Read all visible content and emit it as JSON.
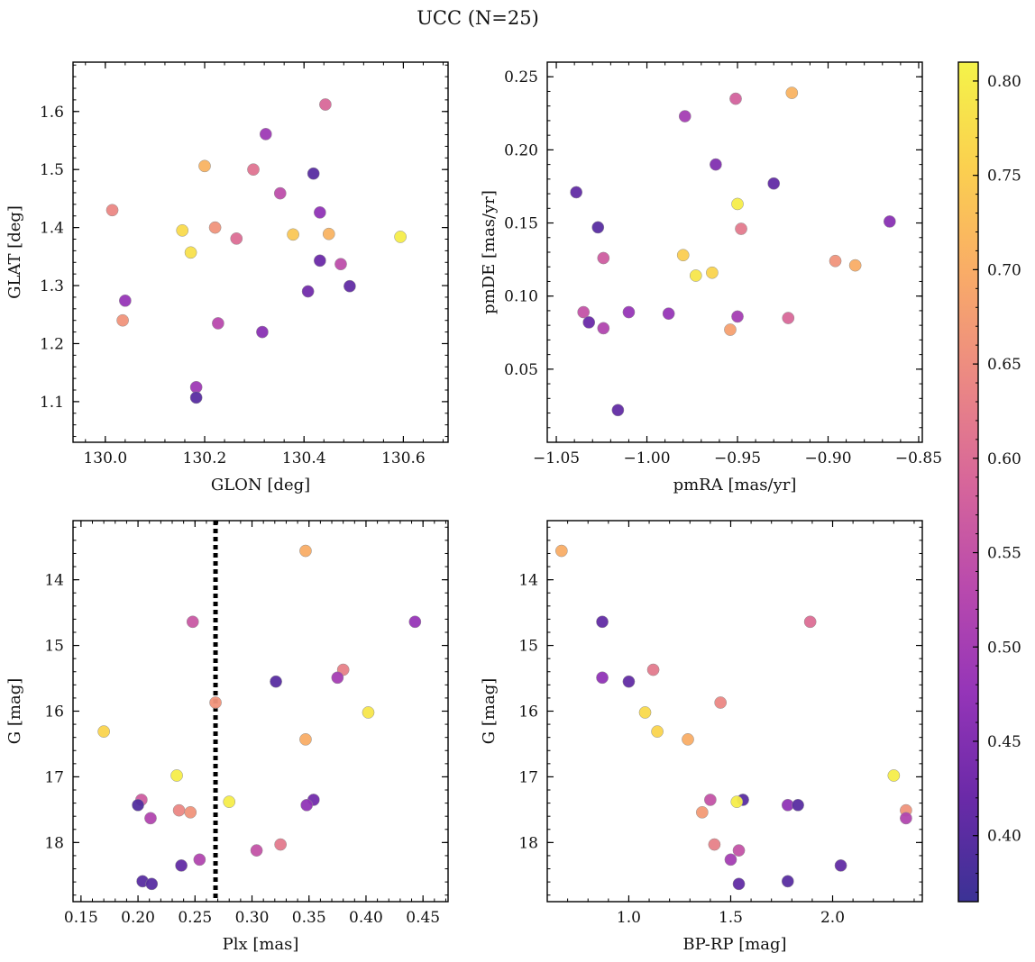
{
  "figure": {
    "title": "UCC (N=25)"
  },
  "chart_data": [
    {
      "type": "scatter",
      "xlabel": "GLON [deg]",
      "ylabel": "GLAT [deg]",
      "xlim": [
        129.935,
        130.69
      ],
      "ylim": [
        1.03,
        1.685
      ],
      "y_inverted": false,
      "xticks": [
        130.0,
        130.2,
        130.4,
        130.6
      ],
      "xtick_labels": [
        "130.0",
        "130.2",
        "130.4",
        "130.6"
      ],
      "yticks": [
        1.1,
        1.2,
        1.3,
        1.4,
        1.5,
        1.6
      ],
      "ytick_labels": [
        "1.1",
        "1.2",
        "1.3",
        "1.4",
        "1.5",
        "1.6"
      ],
      "x": [
        130.443,
        130.323,
        130.419,
        130.2,
        130.298,
        130.352,
        130.432,
        130.014,
        130.221,
        130.155,
        130.378,
        130.45,
        130.594,
        130.264,
        130.172,
        130.432,
        130.474,
        130.492,
        130.408,
        130.04,
        130.035,
        130.227,
        130.316,
        130.183,
        130.183
      ],
      "y": [
        1.612,
        1.561,
        1.493,
        1.506,
        1.5,
        1.459,
        1.426,
        1.43,
        1.4,
        1.395,
        1.388,
        1.389,
        1.384,
        1.381,
        1.357,
        1.343,
        1.337,
        1.299,
        1.29,
        1.274,
        1.24,
        1.235,
        1.22,
        1.125,
        1.107
      ],
      "c": [
        0.59,
        0.49,
        0.4,
        0.71,
        0.61,
        0.54,
        0.47,
        0.64,
        0.66,
        0.77,
        0.74,
        0.71,
        0.8,
        0.6,
        0.78,
        0.42,
        0.54,
        0.41,
        0.43,
        0.48,
        0.66,
        0.53,
        0.46,
        0.49,
        0.4
      ]
    },
    {
      "type": "scatter",
      "xlabel": "pmRA [mas/yr]",
      "ylabel": "pmDE [mas/yr]",
      "xlim": [
        -1.055,
        -0.848
      ],
      "ylim": [
        0.0,
        0.26
      ],
      "y_inverted": false,
      "xticks": [
        -1.05,
        -1.0,
        -0.95,
        -0.9,
        -0.85
      ],
      "xtick_labels": [
        "−1.05",
        "−1.00",
        "−0.95",
        "−0.90",
        "−0.85"
      ],
      "yticks": [
        0.05,
        0.1,
        0.15,
        0.2,
        0.25
      ],
      "ytick_labels": [
        "0.05",
        "0.10",
        "0.15",
        "0.20",
        "0.25"
      ],
      "x": [
        -0.92,
        -0.951,
        -0.979,
        -0.962,
        -0.93,
        -1.039,
        -0.866,
        -1.027,
        -0.95,
        -0.948,
        -0.98,
        -0.964,
        -0.973,
        -1.024,
        -0.896,
        -0.885,
        -1.035,
        -1.01,
        -0.988,
        -0.95,
        -1.032,
        -0.922,
        -1.024,
        -0.954,
        -1.016
      ],
      "y": [
        0.239,
        0.235,
        0.223,
        0.19,
        0.177,
        0.171,
        0.151,
        0.147,
        0.163,
        0.146,
        0.128,
        0.116,
        0.114,
        0.126,
        0.124,
        0.121,
        0.089,
        0.089,
        0.088,
        0.086,
        0.082,
        0.085,
        0.078,
        0.077,
        0.022
      ],
      "c": [
        0.71,
        0.58,
        0.5,
        0.45,
        0.41,
        0.41,
        0.46,
        0.4,
        0.8,
        0.62,
        0.75,
        0.76,
        0.79,
        0.57,
        0.66,
        0.7,
        0.55,
        0.48,
        0.48,
        0.5,
        0.42,
        0.59,
        0.52,
        0.68,
        0.41
      ]
    },
    {
      "type": "scatter",
      "xlabel": "Plx [mas]",
      "ylabel": "G [mag]",
      "xlim": [
        0.143,
        0.472
      ],
      "ylim": [
        18.9,
        13.1
      ],
      "y_inverted": true,
      "xticks": [
        0.15,
        0.2,
        0.25,
        0.3,
        0.35,
        0.4,
        0.45
      ],
      "xtick_labels": [
        "0.15",
        "0.20",
        "0.25",
        "0.30",
        "0.35",
        "0.40",
        "0.45"
      ],
      "yticks": [
        14,
        15,
        16,
        17,
        18
      ],
      "ytick_labels": [
        "14",
        "15",
        "16",
        "17",
        "18"
      ],
      "x": [
        0.347,
        0.248,
        0.443,
        0.38,
        0.375,
        0.321,
        0.268,
        0.402,
        0.17,
        0.347,
        0.234,
        0.203,
        0.2,
        0.354,
        0.348,
        0.28,
        0.211,
        0.236,
        0.246,
        0.325,
        0.304,
        0.254,
        0.238,
        0.204,
        0.212
      ],
      "y": [
        13.56,
        14.64,
        14.64,
        15.37,
        15.49,
        15.55,
        15.87,
        16.02,
        16.31,
        16.43,
        16.98,
        17.35,
        17.43,
        17.35,
        17.43,
        17.38,
        17.63,
        17.51,
        17.54,
        18.03,
        18.12,
        18.26,
        18.35,
        18.59,
        18.63
      ],
      "c": [
        0.7,
        0.56,
        0.48,
        0.63,
        0.5,
        0.4,
        0.66,
        0.79,
        0.76,
        0.7,
        0.8,
        0.57,
        0.39,
        0.43,
        0.47,
        0.8,
        0.52,
        0.64,
        0.66,
        0.62,
        0.55,
        0.52,
        0.41,
        0.4,
        0.4
      ],
      "vline": {
        "x": 0.268,
        "style": "dotted",
        "color": "#000000"
      }
    },
    {
      "type": "scatter",
      "xlabel": "BP-RP [mag]",
      "ylabel": "G [mag]",
      "xlim": [
        0.6,
        2.44
      ],
      "ylim": [
        18.9,
        13.1
      ],
      "y_inverted": true,
      "xticks": [
        1.0,
        1.5,
        2.0
      ],
      "xtick_labels": [
        "1.0",
        "1.5",
        "2.0"
      ],
      "yticks": [
        14,
        15,
        16,
        17,
        18
      ],
      "ytick_labels": [
        "14",
        "15",
        "16",
        "17",
        "18"
      ],
      "x": [
        0.67,
        0.87,
        1.89,
        1.12,
        0.87,
        1.0,
        1.45,
        1.08,
        1.14,
        1.29,
        2.3,
        1.4,
        1.56,
        1.78,
        1.83,
        1.53,
        2.36,
        2.36,
        1.36,
        1.42,
        1.54,
        1.5,
        2.04,
        1.78,
        1.54
      ],
      "y": [
        13.56,
        14.64,
        14.64,
        15.37,
        15.49,
        15.55,
        15.87,
        16.02,
        16.31,
        16.43,
        16.98,
        17.35,
        17.35,
        17.43,
        17.43,
        17.38,
        17.51,
        17.63,
        17.54,
        18.03,
        18.12,
        18.26,
        18.35,
        18.59,
        18.63
      ],
      "c": [
        0.7,
        0.41,
        0.6,
        0.62,
        0.47,
        0.41,
        0.64,
        0.77,
        0.76,
        0.7,
        0.8,
        0.55,
        0.4,
        0.47,
        0.4,
        0.8,
        0.66,
        0.52,
        0.67,
        0.63,
        0.55,
        0.5,
        0.41,
        0.4,
        0.41
      ]
    }
  ],
  "colorbar": {
    "cmap": "plasma",
    "range": [
      0.365,
      0.81
    ],
    "ticks": [
      0.4,
      0.45,
      0.5,
      0.55,
      0.6,
      0.65,
      0.7,
      0.75,
      0.8
    ],
    "tick_labels": [
      "0.40",
      "0.45",
      "0.50",
      "0.55",
      "0.60",
      "0.65",
      "0.70",
      "0.75",
      "0.80"
    ],
    "colormap_stops": [
      "#3b3295",
      "#6b2aa8",
      "#9535b8",
      "#b94aad",
      "#d7669a",
      "#ec8983",
      "#f9ac67",
      "#fbd04f",
      "#f4f349"
    ]
  }
}
